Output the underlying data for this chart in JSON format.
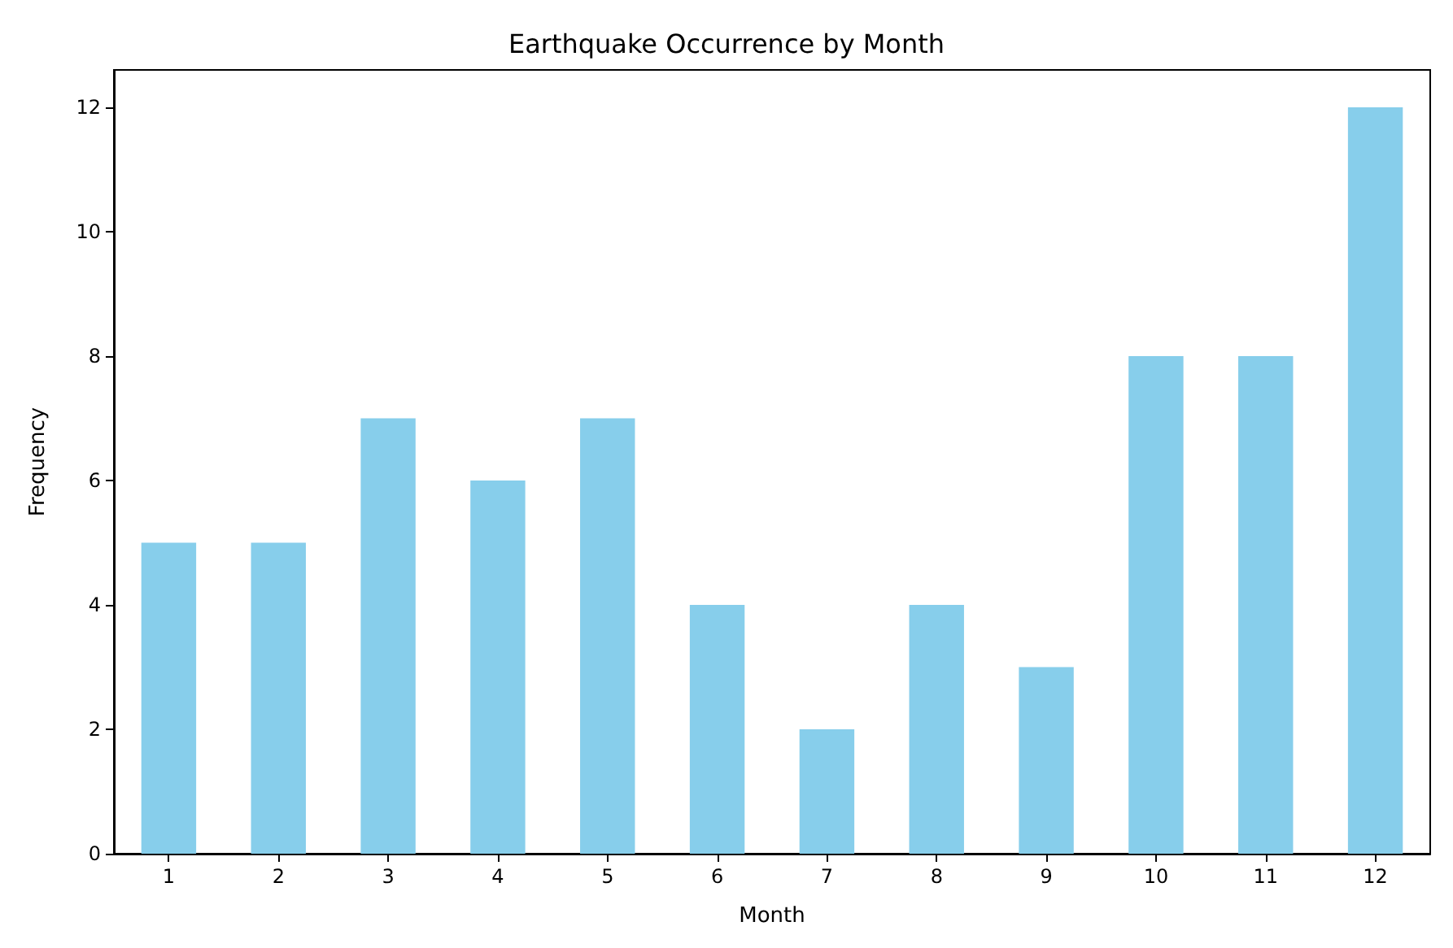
{
  "chart_data": {
    "type": "bar",
    "title": "Earthquake Occurrence by Month",
    "xlabel": "Month",
    "ylabel": "Frequency",
    "categories": [
      "1",
      "2",
      "3",
      "4",
      "5",
      "6",
      "7",
      "8",
      "9",
      "10",
      "11",
      "12"
    ],
    "values": [
      5,
      5,
      7,
      6,
      7,
      4,
      2,
      4,
      3,
      8,
      8,
      12
    ],
    "color": "#87ceeb",
    "ylim": [
      0,
      12.6
    ],
    "yticks": [
      0,
      2,
      4,
      6,
      8,
      10,
      12
    ],
    "grid": false
  }
}
